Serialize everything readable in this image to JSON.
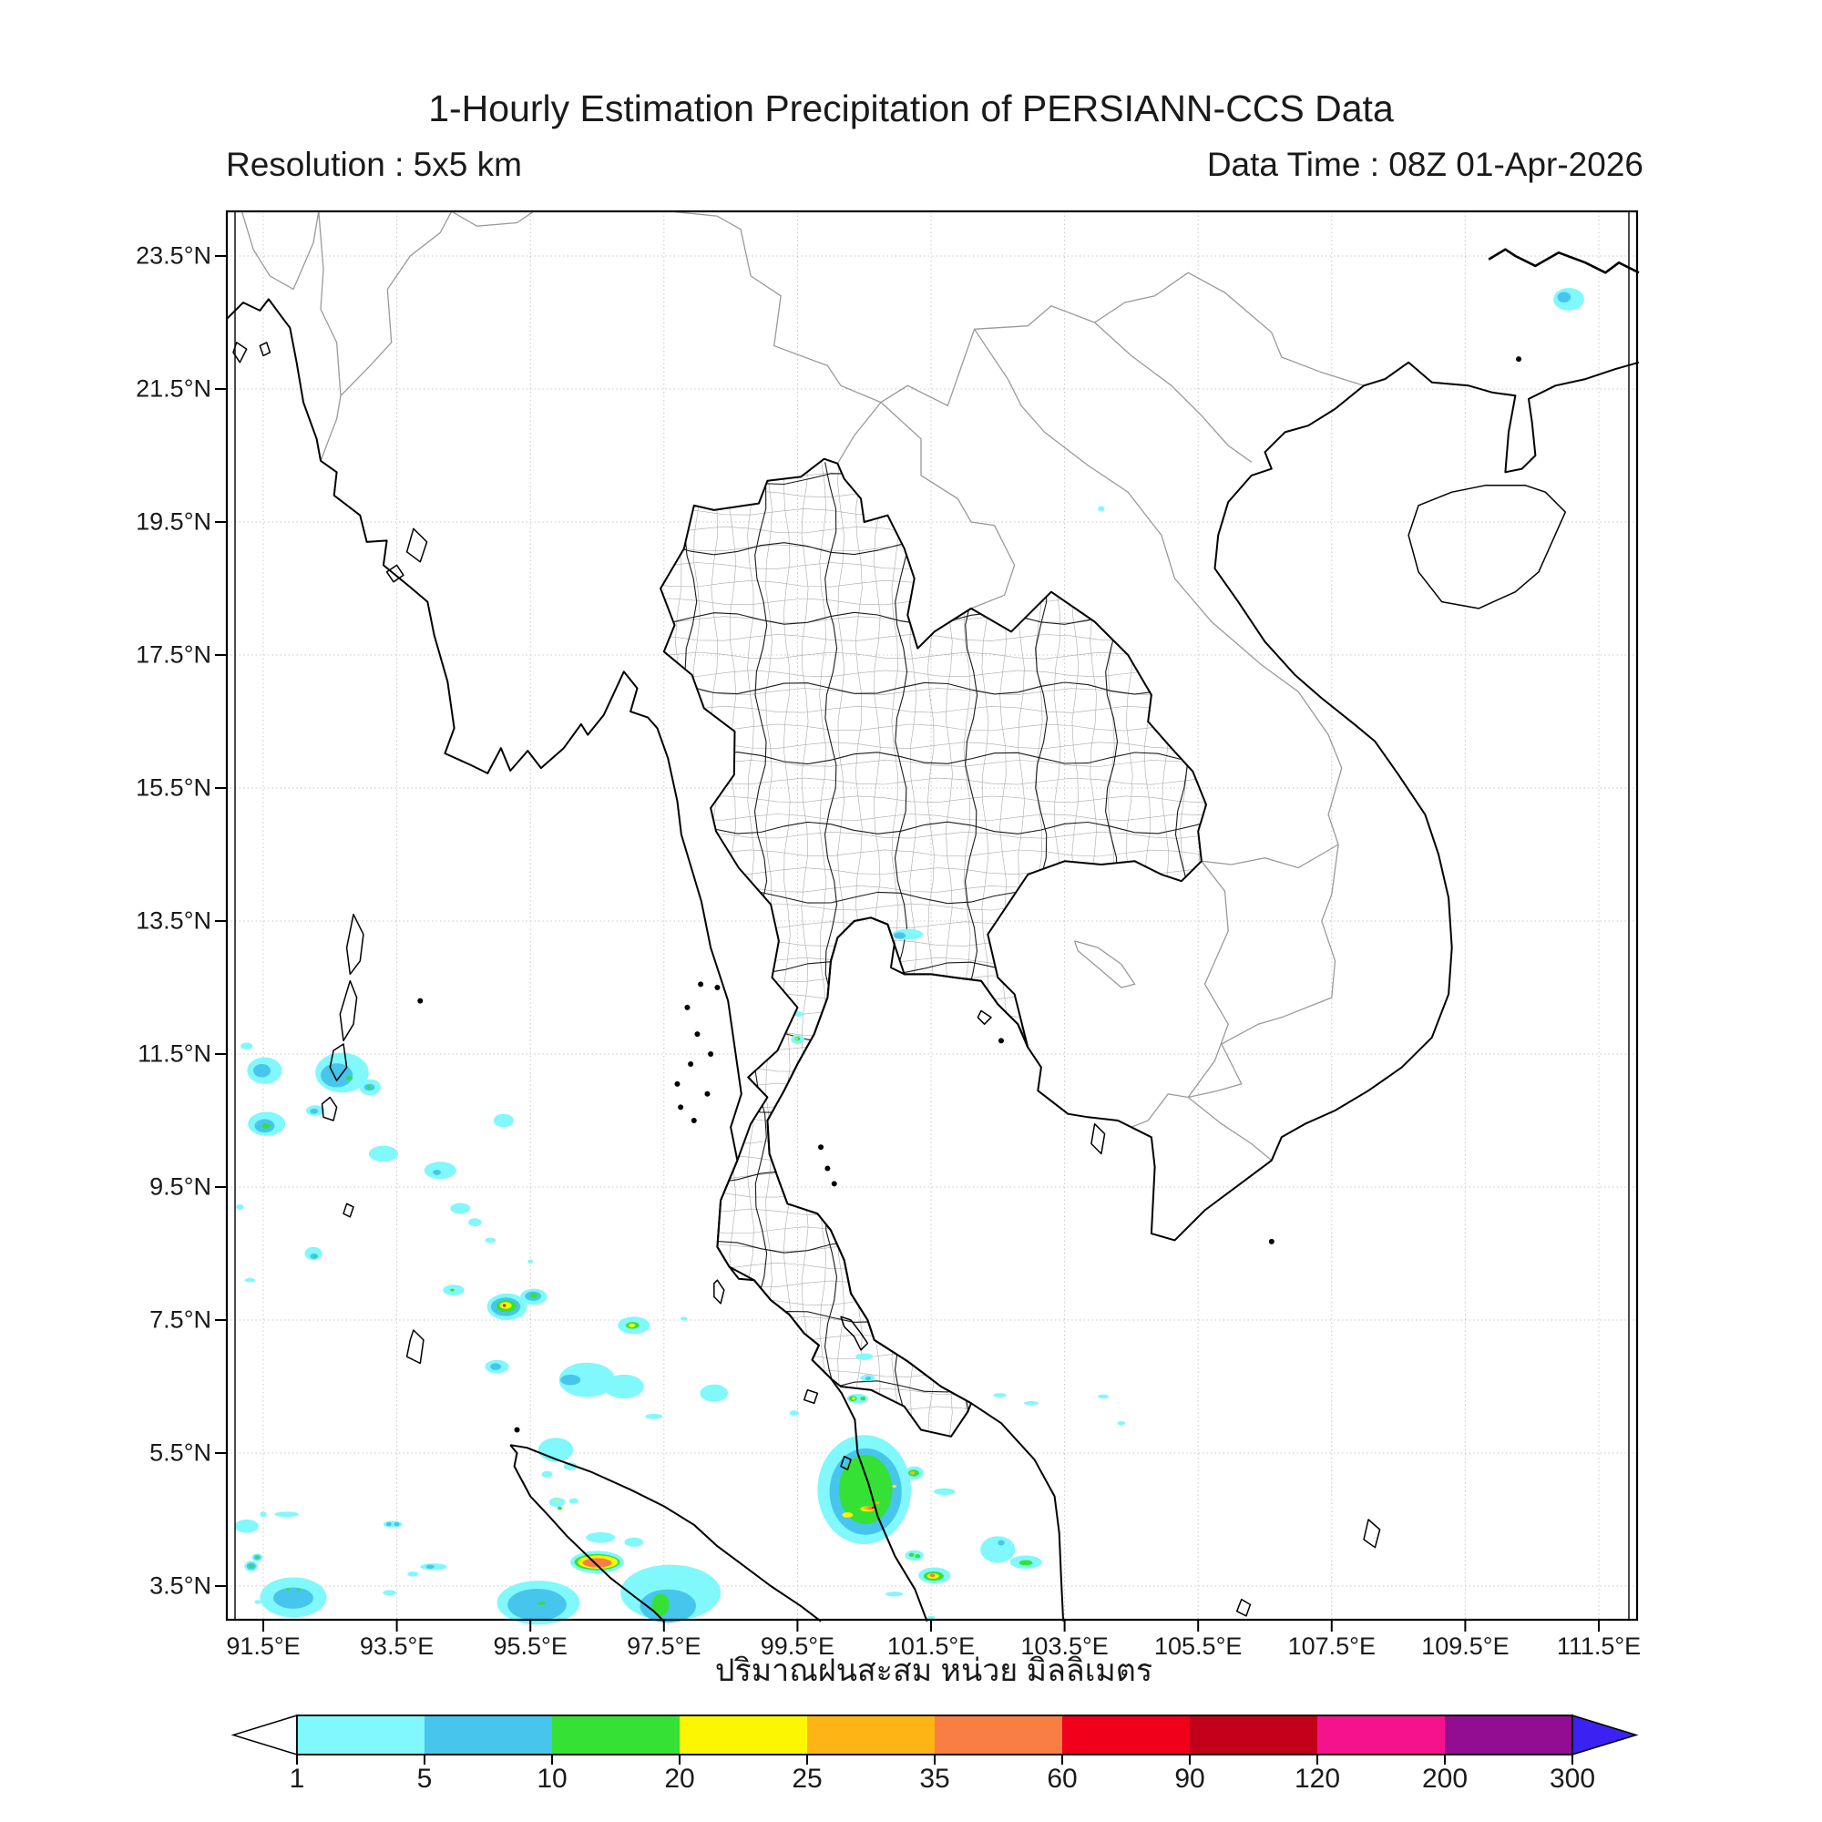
{
  "header": {
    "title": "1-Hourly Estimation Precipitation of PERSIANN-CCS Data",
    "resolution": "Resolution : 5x5 km",
    "data_time": "Data Time : 08Z 01-Apr-2026"
  },
  "axes": {
    "x_label_thai": "ปริมาณฝนสะสม หน่วย มิลลิเมตร",
    "x_tick_values": [
      91.5,
      93.5,
      95.5,
      97.5,
      99.5,
      101.5,
      103.5,
      105.5,
      107.5,
      109.5,
      111.5
    ],
    "x_tick_labels": [
      "91.5°E",
      "93.5°E",
      "95.5°E",
      "97.5°E",
      "99.5°E",
      "101.5°E",
      "103.5°E",
      "105.5°E",
      "107.5°E",
      "109.5°E",
      "111.5°E"
    ],
    "y_tick_values": [
      23.5,
      21.5,
      19.5,
      17.5,
      15.5,
      13.5,
      11.5,
      9.5,
      7.5,
      5.5,
      3.5
    ],
    "y_tick_labels": [
      "23.5°N",
      "21.5°N",
      "19.5°N",
      "17.5°N",
      "15.5°N",
      "13.5°N",
      "11.5°N",
      "9.5°N",
      "7.5°N",
      "5.5°N",
      "3.5°N"
    ]
  },
  "colorbar": {
    "tick_labels": [
      "1",
      "5",
      "10",
      "20",
      "25",
      "35",
      "60",
      "90",
      "120",
      "200",
      "300"
    ],
    "segment_colors": [
      "#80f8fc",
      "#46c6ec",
      "#35e135",
      "#fdf602",
      "#fdb515",
      "#f97e44",
      "#f1001c",
      "#c30019",
      "#f4138d",
      "#930d93"
    ],
    "under_arrow_color": "#ffffff",
    "over_arrow_color": "#3a22f2"
  },
  "chart_data": {
    "type": "precipitation-map",
    "region": "Thailand / Indochina (91.5E-111.5E, 3.5N-23.5N)",
    "legend_levels_mm": [
      1,
      5,
      10,
      20,
      25,
      35,
      60,
      90,
      120,
      200,
      300
    ],
    "level_colors": {
      "1": "#80f8fc",
      "2": "#46c6ec",
      "3": "#35e135",
      "4": "#fdf602",
      "5": "#fdb515",
      "6": "#f97e44",
      "7": "#f1001c"
    },
    "cells": [
      [
        1,
        92.68,
        11.22,
        0.4,
        0.3
      ],
      [
        2,
        92.6,
        11.18,
        0.24,
        0.18
      ],
      [
        3,
        92.79,
        11.14,
        0.05,
        0.03
      ],
      [
        1,
        93.1,
        11.0,
        0.16,
        0.12
      ],
      [
        2,
        93.09,
        11.0,
        0.08,
        0.05
      ],
      [
        3,
        93.08,
        11.0,
        0.03,
        0.02
      ],
      [
        1,
        91.52,
        11.25,
        0.26,
        0.2
      ],
      [
        2,
        91.48,
        11.25,
        0.13,
        0.1
      ],
      [
        1,
        91.25,
        11.62,
        0.09,
        0.05
      ],
      [
        1,
        91.55,
        10.45,
        0.28,
        0.18
      ],
      [
        2,
        91.52,
        10.42,
        0.15,
        0.1
      ],
      [
        3,
        91.54,
        10.42,
        0.06,
        0.04
      ],
      [
        1,
        92.28,
        10.65,
        0.14,
        0.08
      ],
      [
        2,
        92.26,
        10.64,
        0.06,
        0.04
      ],
      [
        1,
        93.3,
        10.0,
        0.22,
        0.12
      ],
      [
        1,
        94.15,
        9.75,
        0.24,
        0.13
      ],
      [
        2,
        94.1,
        9.72,
        0.06,
        0.04
      ],
      [
        1,
        95.1,
        10.5,
        0.15,
        0.1
      ],
      [
        1,
        94.45,
        9.18,
        0.15,
        0.08
      ],
      [
        1,
        94.67,
        8.97,
        0.1,
        0.06
      ],
      [
        1,
        92.25,
        8.5,
        0.13,
        0.1
      ],
      [
        2,
        92.26,
        8.46,
        0.06,
        0.04
      ],
      [
        3,
        92.28,
        8.45,
        0.02,
        0.02
      ],
      [
        1,
        94.35,
        7.95,
        0.16,
        0.08
      ],
      [
        3,
        94.33,
        7.95,
        0.03,
        0.02
      ],
      [
        1,
        91.15,
        9.2,
        0.06,
        0.04
      ],
      [
        1,
        91.3,
        8.1,
        0.08,
        0.03
      ],
      [
        1,
        94.9,
        8.7,
        0.08,
        0.04
      ],
      [
        1,
        95.5,
        8.38,
        0.04,
        0.03
      ],
      [
        1,
        95.15,
        7.7,
        0.3,
        0.2
      ],
      [
        2,
        95.13,
        7.7,
        0.22,
        0.14
      ],
      [
        3,
        95.14,
        7.71,
        0.15,
        0.09
      ],
      [
        4,
        95.13,
        7.72,
        0.09,
        0.05
      ],
      [
        7,
        95.11,
        7.72,
        0.025,
        0.02
      ],
      [
        1,
        95.55,
        7.85,
        0.2,
        0.12
      ],
      [
        2,
        95.54,
        7.86,
        0.12,
        0.07
      ],
      [
        3,
        95.55,
        7.87,
        0.055,
        0.035
      ],
      [
        1,
        97.05,
        7.42,
        0.24,
        0.13
      ],
      [
        3,
        97.03,
        7.42,
        0.1,
        0.05
      ],
      [
        4,
        97.02,
        7.42,
        0.05,
        0.03
      ],
      [
        1,
        97.8,
        7.52,
        0.05,
        0.03
      ],
      [
        1,
        96.35,
        6.6,
        0.42,
        0.26
      ],
      [
        1,
        96.9,
        6.5,
        0.3,
        0.18
      ],
      [
        2,
        96.1,
        6.6,
        0.15,
        0.08
      ],
      [
        1,
        95.0,
        6.8,
        0.18,
        0.1
      ],
      [
        2,
        94.98,
        6.8,
        0.08,
        0.05
      ],
      [
        1,
        98.25,
        6.4,
        0.21,
        0.13
      ],
      [
        1,
        97.35,
        6.05,
        0.13,
        0.04
      ],
      [
        1,
        99.45,
        6.1,
        0.07,
        0.04
      ],
      [
        1,
        100.5,
        6.95,
        0.13,
        0.05
      ],
      [
        1,
        100.55,
        6.63,
        0.11,
        0.05
      ],
      [
        2,
        100.56,
        6.62,
        0.04,
        0.03
      ],
      [
        1,
        100.4,
        6.32,
        0.16,
        0.07
      ],
      [
        3,
        100.33,
        6.32,
        0.06,
        0.04
      ],
      [
        4,
        100.34,
        6.32,
        0.025,
        0.02
      ],
      [
        3,
        100.48,
        6.32,
        0.04,
        0.03
      ],
      [
        1,
        102.53,
        6.37,
        0.1,
        0.03
      ],
      [
        1,
        103.0,
        6.25,
        0.11,
        0.03
      ],
      [
        1,
        104.08,
        6.35,
        0.08,
        0.03
      ],
      [
        1,
        104.35,
        5.95,
        0.06,
        0.03
      ],
      [
        1,
        100.5,
        4.95,
        0.7,
        0.82
      ],
      [
        2,
        100.52,
        4.92,
        0.54,
        0.65
      ],
      [
        3,
        100.52,
        4.95,
        0.4,
        0.52
      ],
      [
        4,
        100.25,
        4.57,
        0.08,
        0.04
      ],
      [
        4,
        100.55,
        4.66,
        0.11,
        0.04
      ],
      [
        5,
        100.57,
        4.67,
        0.08,
        0.03
      ],
      [
        6,
        100.6,
        4.67,
        0.05,
        0.025
      ],
      [
        7,
        100.63,
        4.68,
        0.02,
        0.015
      ],
      [
        4,
        100.95,
        5.0,
        0.03,
        0.02
      ],
      [
        5,
        100.7,
        4.75,
        0.03,
        0.02
      ],
      [
        1,
        101.25,
        5.2,
        0.14,
        0.1
      ],
      [
        3,
        101.24,
        5.2,
        0.08,
        0.05
      ],
      [
        5,
        101.22,
        5.2,
        0.035,
        0.025
      ],
      [
        1,
        101.7,
        4.92,
        0.16,
        0.05
      ],
      [
        1,
        102.5,
        4.05,
        0.26,
        0.2
      ],
      [
        2,
        102.55,
        4.15,
        0.05,
        0.04
      ],
      [
        1,
        102.92,
        3.86,
        0.24,
        0.1
      ],
      [
        3,
        102.92,
        3.85,
        0.1,
        0.04
      ],
      [
        1,
        101.25,
        3.96,
        0.14,
        0.08
      ],
      [
        3,
        101.21,
        3.97,
        0.04,
        0.03
      ],
      [
        3,
        101.3,
        3.95,
        0.04,
        0.03
      ],
      [
        1,
        101.55,
        3.66,
        0.24,
        0.12
      ],
      [
        3,
        101.54,
        3.65,
        0.15,
        0.07
      ],
      [
        4,
        101.53,
        3.65,
        0.09,
        0.04
      ],
      [
        6,
        101.52,
        3.66,
        0.04,
        0.025
      ],
      [
        1,
        100.95,
        3.38,
        0.13,
        0.035
      ],
      [
        1,
        101.5,
        3.02,
        0.06,
        0.03
      ],
      [
        1,
        95.88,
        5.55,
        0.26,
        0.18
      ],
      [
        1,
        96.1,
        5.3,
        0.1,
        0.06
      ],
      [
        1,
        95.75,
        5.18,
        0.08,
        0.05
      ],
      [
        1,
        95.9,
        4.76,
        0.12,
        0.07
      ],
      [
        3,
        95.94,
        4.67,
        0.035,
        0.025
      ],
      [
        4,
        95.9,
        4.78,
        0.02,
        0.015
      ],
      [
        1,
        96.15,
        4.78,
        0.07,
        0.04
      ],
      [
        1,
        96.55,
        4.23,
        0.22,
        0.08
      ],
      [
        1,
        97.05,
        4.16,
        0.14,
        0.07
      ],
      [
        1,
        96.5,
        3.86,
        0.4,
        0.17
      ],
      [
        3,
        96.5,
        3.86,
        0.34,
        0.12
      ],
      [
        4,
        96.51,
        3.86,
        0.3,
        0.1
      ],
      [
        6,
        96.5,
        3.85,
        0.22,
        0.07
      ],
      [
        1,
        91.95,
        3.33,
        0.5,
        0.3
      ],
      [
        2,
        91.95,
        3.32,
        0.3,
        0.16
      ],
      [
        3,
        91.87,
        3.45,
        0.025,
        0.02
      ],
      [
        3,
        92.03,
        3.44,
        0.025,
        0.02
      ],
      [
        1,
        91.32,
        3.8,
        0.1,
        0.08
      ],
      [
        2,
        91.32,
        3.8,
        0.07,
        0.05
      ],
      [
        3,
        91.32,
        3.8,
        0.03,
        0.02
      ],
      [
        1,
        91.41,
        3.93,
        0.08,
        0.06
      ],
      [
        2,
        91.41,
        3.93,
        0.05,
        0.04
      ],
      [
        3,
        91.41,
        3.93,
        0.022,
        0.018
      ],
      [
        1,
        91.25,
        4.4,
        0.18,
        0.1
      ],
      [
        1,
        91.5,
        4.58,
        0.05,
        0.04
      ],
      [
        1,
        91.85,
        4.58,
        0.18,
        0.04
      ],
      [
        1,
        93.44,
        4.43,
        0.14,
        0.05
      ],
      [
        2,
        93.38,
        4.43,
        0.04,
        0.03
      ],
      [
        2,
        93.5,
        4.43,
        0.04,
        0.03
      ],
      [
        1,
        94.05,
        3.79,
        0.2,
        0.05
      ],
      [
        2,
        94.0,
        3.79,
        0.06,
        0.03
      ],
      [
        1,
        93.74,
        3.68,
        0.08,
        0.04
      ],
      [
        1,
        93.39,
        3.4,
        0.1,
        0.04
      ],
      [
        1,
        91.42,
        3.26,
        0.05,
        0.03
      ],
      [
        1,
        95.62,
        3.25,
        0.62,
        0.33
      ],
      [
        2,
        95.6,
        3.22,
        0.44,
        0.24
      ],
      [
        3,
        95.67,
        3.24,
        0.06,
        0.025
      ],
      [
        1,
        97.6,
        3.4,
        0.75,
        0.42
      ],
      [
        2,
        97.56,
        3.2,
        0.42,
        0.25
      ],
      [
        3,
        97.45,
        3.22,
        0.13,
        0.17
      ],
      [
        1,
        101.15,
        13.3,
        0.23,
        0.08
      ],
      [
        2,
        101.03,
        13.28,
        0.09,
        0.05
      ],
      [
        1,
        99.5,
        11.72,
        0.1,
        0.07
      ],
      [
        3,
        99.5,
        11.73,
        0.04,
        0.03
      ],
      [
        4,
        99.49,
        11.73,
        0.018,
        0.015
      ],
      [
        1,
        99.52,
        12.1,
        0.06,
        0.04
      ],
      [
        1,
        111.05,
        22.85,
        0.23,
        0.17
      ],
      [
        2,
        110.98,
        22.88,
        0.1,
        0.08
      ],
      [
        1,
        104.05,
        19.7,
        0.05,
        0.04
      ]
    ]
  }
}
